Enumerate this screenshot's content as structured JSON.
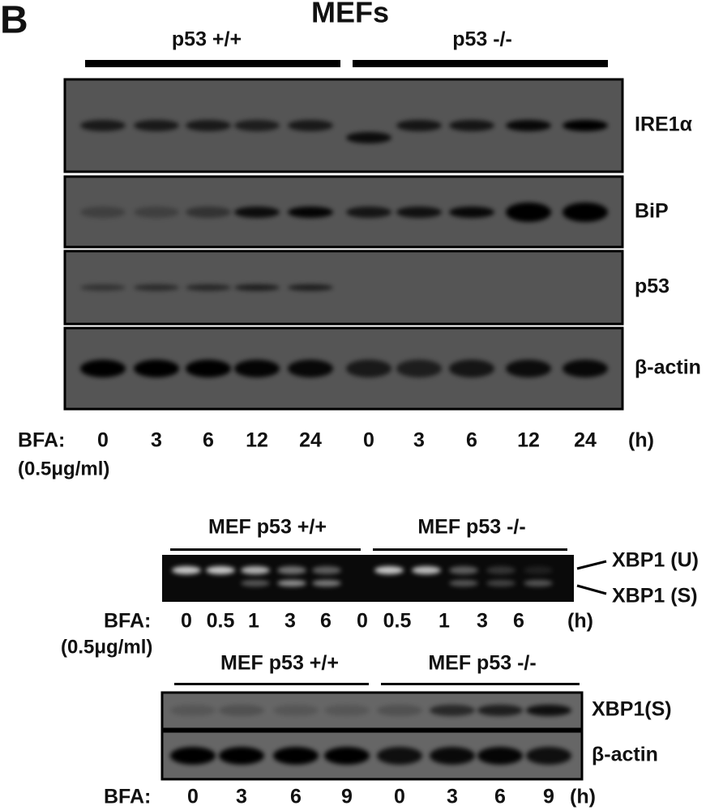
{
  "panel_label": "B",
  "title": "MEFs",
  "top_blot": {
    "groups": [
      "p53 +/+",
      "p53 -/-"
    ],
    "rows": [
      "IRE1α",
      "BiP",
      "p53",
      "β-actin"
    ],
    "treatment": {
      "label": "BFA:",
      "lanes": [
        "0",
        "3",
        "6",
        "12",
        "24",
        "0",
        "3",
        "6",
        "12",
        "24"
      ],
      "unit": "(h)",
      "dose": "(0.5μg/ml)"
    }
  },
  "xbp1_gel": {
    "groups": [
      "MEF p53 +/+",
      "MEF p53 -/-"
    ],
    "bands": [
      "XBP1 (U)",
      "XBP1 (S)"
    ],
    "treatment": {
      "label": "BFA:",
      "lanes": [
        "0",
        "0.5",
        "1",
        "3",
        "6",
        "0",
        "0.5",
        "1",
        "3",
        "6"
      ],
      "unit": "(h)",
      "dose": "(0.5μg/ml)"
    }
  },
  "bottom_blot": {
    "groups": [
      "MEF p53 +/+",
      "MEF p53 -/-"
    ],
    "rows": [
      "XBP1(S)",
      "β-actin"
    ],
    "treatment": {
      "label": "BFA:",
      "lanes": [
        "0",
        "3",
        "6",
        "9",
        "0",
        "3",
        "6",
        "9"
      ],
      "unit": "(h)"
    }
  }
}
